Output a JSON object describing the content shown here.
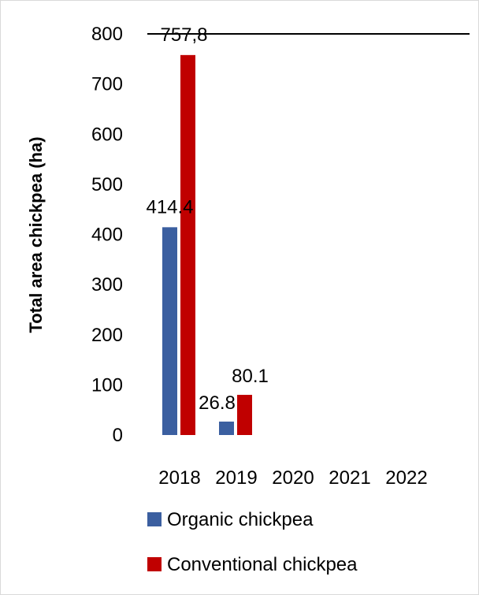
{
  "chart_data": {
    "type": "bar",
    "title": "",
    "xlabel": "",
    "ylabel": "Total area chickpea (ha)",
    "categories": [
      "2018",
      "2019",
      "2020",
      "2021",
      "2022"
    ],
    "ylim": [
      0,
      800
    ],
    "yticks": [
      0,
      100,
      200,
      300,
      400,
      500,
      600,
      700,
      800
    ],
    "grid": false,
    "legend_position": "bottom",
    "series": [
      {
        "name": "Organic chickpea",
        "color": "#3B5FA0",
        "values": [
          414.4,
          26.8,
          null,
          null,
          null
        ],
        "data_labels": [
          "414.4",
          "26.8",
          "",
          "",
          ""
        ]
      },
      {
        "name": "Conventional chickpea",
        "color": "#C00000",
        "values": [
          757.8,
          80.1,
          null,
          null,
          null
        ],
        "data_labels": [
          "757,8",
          "80.1",
          "",
          "",
          ""
        ]
      }
    ]
  }
}
